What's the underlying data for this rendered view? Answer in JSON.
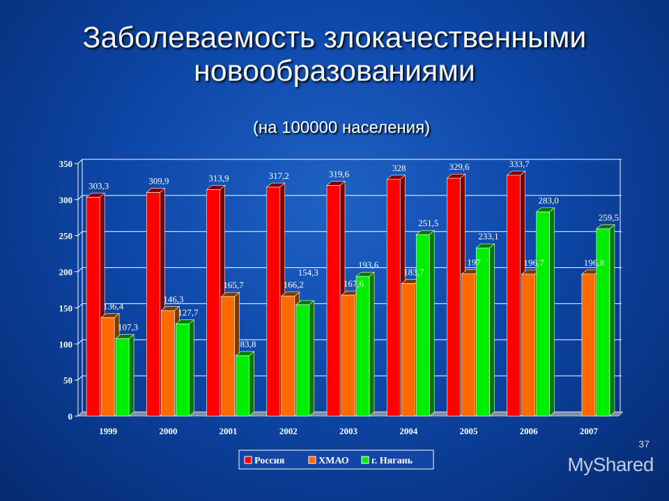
{
  "title_line1": "Заболеваемость злокачественными",
  "title_line2": "новообразованиями",
  "subtitle": "(на 100000 населения)",
  "page_number": "37",
  "watermark": "MyShared",
  "chart_data": {
    "type": "bar",
    "categories": [
      "1999",
      "2000",
      "2001",
      "2002",
      "2003",
      "2004",
      "2005",
      "2006",
      "2007"
    ],
    "series": [
      {
        "name": "Россия",
        "color": "#ff0000",
        "values": [
          303.3,
          309.9,
          313.9,
          317.2,
          319.6,
          328,
          329.6,
          333.7,
          null
        ],
        "labels": [
          "303,3",
          "309,9",
          "313,9",
          "317,2",
          "319,6",
          "328",
          "329,6",
          "333,7",
          ""
        ]
      },
      {
        "name": "ХМАО",
        "color": "#ff6a00",
        "values": [
          136.4,
          146.3,
          165.7,
          166.2,
          167.6,
          183.7,
          197,
          196.7,
          196.8
        ],
        "labels": [
          "136,4",
          "146,3",
          "165,7",
          "166,2",
          "167,6",
          "183,7",
          "197",
          "196,7",
          "196,8"
        ]
      },
      {
        "name": "г. Нягань",
        "color": "#00ee00",
        "values": [
          107.3,
          127.7,
          83.8,
          154.3,
          193.6,
          251.5,
          233.1,
          283.0,
          259.5
        ],
        "labels": [
          "107,3",
          "127,7",
          "83,8",
          "154,3",
          "193,6",
          "251,5",
          "233,1",
          "283,0",
          "259,5"
        ]
      }
    ],
    "yticks": [
      0,
      50,
      100,
      150,
      200,
      250,
      300,
      350
    ],
    "ylim": [
      0,
      350
    ],
    "grid": true,
    "legend": "bottom"
  }
}
